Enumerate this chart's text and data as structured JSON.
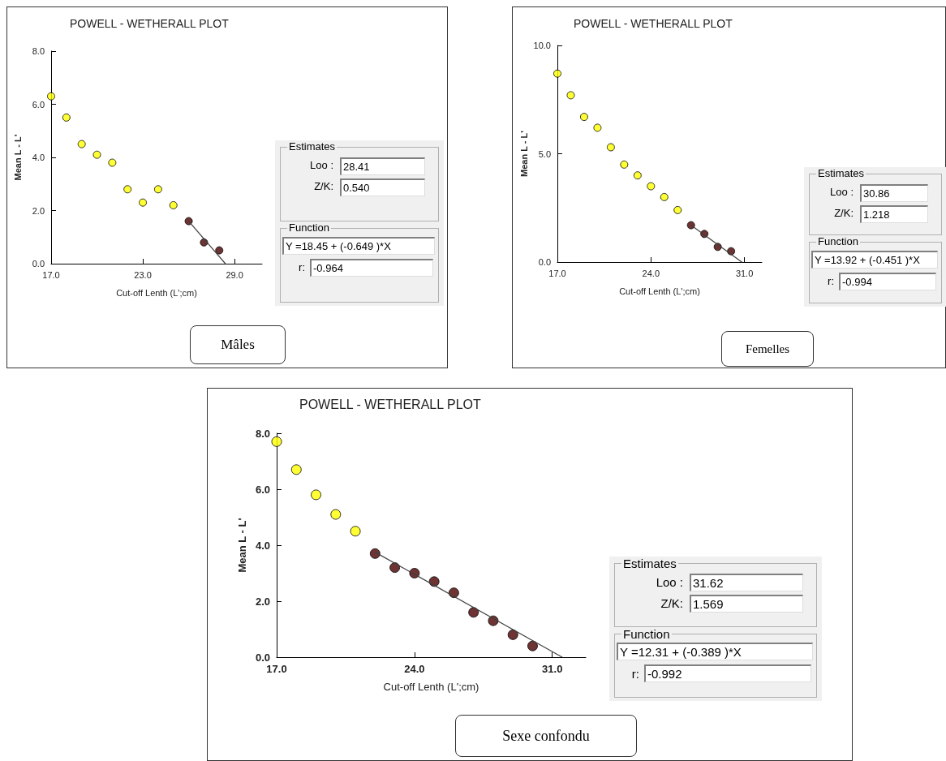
{
  "chart_data": [
    {
      "type": "scatter",
      "title": "POWELL - WETHERALL PLOT",
      "xlabel": "Cut-off Lenth (L';cm)",
      "ylabel": "Mean L - L'",
      "xlim": [
        17,
        30.8
      ],
      "ylim": [
        0,
        8
      ],
      "xticks": [
        {
          "value": 17,
          "label": "17.0"
        },
        {
          "value": 23,
          "label": "23.0"
        },
        {
          "value": 29,
          "label": "29.0"
        }
      ],
      "yticks": [
        {
          "value": 0,
          "label": "0.0"
        },
        {
          "value": 2,
          "label": "2.0"
        },
        {
          "value": 4,
          "label": "4.0"
        },
        {
          "value": 6,
          "label": "6.0"
        },
        {
          "value": 8,
          "label": "8.0"
        }
      ],
      "grid": false,
      "series": [
        {
          "color": "#ffff00",
          "marker": "circle",
          "x": [
            17,
            18,
            19,
            20,
            21,
            22,
            23,
            24,
            25
          ],
          "values": [
            6.3,
            5.5,
            4.5,
            4.1,
            3.8,
            2.8,
            2.3,
            2.8,
            2.2
          ]
        },
        {
          "color": "#4a0000",
          "marker": "circle",
          "x": [
            26,
            27,
            28
          ],
          "values": [
            1.6,
            0.8,
            0.5
          ]
        },
        {
          "type": "line",
          "color": "#404040",
          "marker": "none",
          "line_style": "solid",
          "x": [
            26,
            28.4
          ],
          "values": [
            1.6,
            0
          ]
        }
      ],
      "annotations": [
        "Estimates",
        "Loo :",
        "28.41",
        "Z/K:",
        "0.540",
        "Function",
        "Y =18.45 + (-0.649 )*X",
        "r:",
        "-0.964",
        "Mâles"
      ]
    },
    {
      "type": "scatter",
      "title": "POWELL - WETHERALL PLOT",
      "xlabel": "Cut-off Lenth (L';cm)",
      "ylabel": "Mean L - L'",
      "xlim": [
        17,
        32.3
      ],
      "ylim": [
        0,
        10
      ],
      "xticks": [
        {
          "value": 17,
          "label": "17.0"
        },
        {
          "value": 24,
          "label": "24.0"
        },
        {
          "value": 31,
          "label": "31.0"
        }
      ],
      "yticks": [
        {
          "value": 0,
          "label": "0.0"
        },
        {
          "value": 5,
          "label": "5.0"
        },
        {
          "value": 10,
          "label": "10.0"
        }
      ],
      "grid": false,
      "series": [
        {
          "color": "#ffff00",
          "marker": "circle",
          "x": [
            17,
            18,
            19,
            20,
            21,
            22,
            23,
            24,
            25,
            26
          ],
          "values": [
            8.7,
            7.7,
            6.7,
            6.2,
            5.3,
            4.5,
            4.0,
            3.5,
            3.0,
            2.4
          ]
        },
        {
          "color": "#4a0000",
          "marker": "circle",
          "x": [
            27,
            28,
            29,
            30
          ],
          "values": [
            1.7,
            1.3,
            0.7,
            0.5
          ]
        },
        {
          "type": "line",
          "color": "#404040",
          "marker": "none",
          "line_style": "solid",
          "x": [
            27,
            30.8
          ],
          "values": [
            1.7,
            0
          ]
        }
      ],
      "annotations": [
        "Estimates",
        "Loo :",
        "30.86",
        "Z/K:",
        "1.218",
        "Function",
        "Y =13.92 + (-0.451 )*X",
        "r:",
        "-0.994",
        "Femelles"
      ]
    },
    {
      "type": "scatter",
      "title": "POWELL - WETHERALL PLOT",
      "xlabel": "Cut-off Lenth (L';cm)",
      "ylabel": "Mean L - L'",
      "xlim": [
        17,
        32.7
      ],
      "ylim": [
        0,
        8
      ],
      "xticks": [
        {
          "value": 17,
          "label": "17.0"
        },
        {
          "value": 24,
          "label": "24.0"
        },
        {
          "value": 31,
          "label": "31.0"
        }
      ],
      "yticks": [
        {
          "value": 0,
          "label": "0.0"
        },
        {
          "value": 2,
          "label": "2.0"
        },
        {
          "value": 4,
          "label": "4.0"
        },
        {
          "value": 6,
          "label": "6.0"
        },
        {
          "value": 8,
          "label": "8.0"
        }
      ],
      "grid": false,
      "series": [
        {
          "color": "#ffff00",
          "marker": "circle",
          "x": [
            17,
            18,
            19,
            20,
            21
          ],
          "values": [
            7.7,
            6.7,
            5.8,
            5.1,
            4.5
          ]
        },
        {
          "color": "#4a0000",
          "marker": "circle",
          "x": [
            22,
            23,
            24,
            25,
            26,
            27,
            28,
            29,
            30
          ],
          "values": [
            3.7,
            3.2,
            3.0,
            2.7,
            2.3,
            1.6,
            1.3,
            0.8,
            0.4
          ]
        },
        {
          "type": "line",
          "color": "#404040",
          "marker": "none",
          "line_style": "solid",
          "x": [
            22,
            31.5
          ],
          "values": [
            3.75,
            0
          ]
        }
      ],
      "annotations": [
        "Estimates",
        "Loo :",
        "31.62",
        "Z/K:",
        "1.569",
        "Function",
        "Y =12.31 + (-0.389 )*X",
        "r:",
        "-0.992",
        "Sexe confondu"
      ]
    }
  ]
}
